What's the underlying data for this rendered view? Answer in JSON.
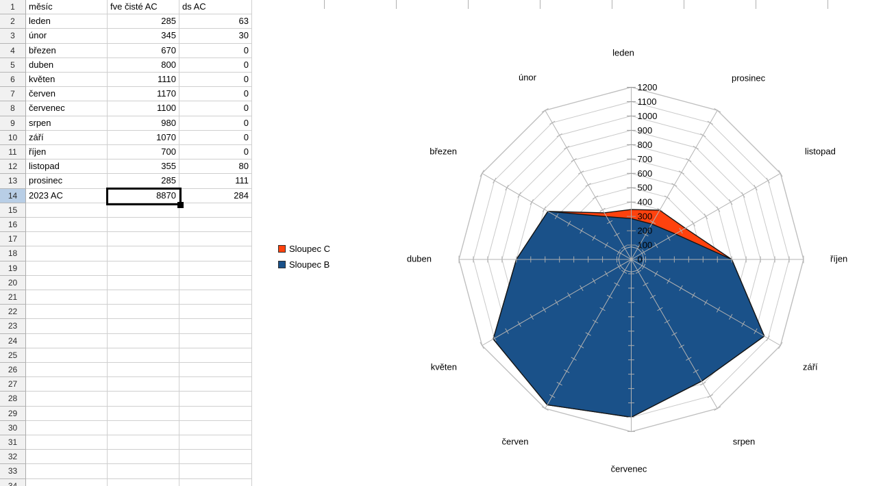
{
  "app": {
    "description_title": "Spreadsheet with stacked radar (net) chart"
  },
  "spreadsheet": {
    "first_row": 1,
    "last_row": 34,
    "header_row": [
      "měsíc",
      "fve čisté AC",
      "ds AC"
    ],
    "rows": [
      {
        "month": "leden",
        "fve": 285,
        "ds": 63
      },
      {
        "month": "únor",
        "fve": 345,
        "ds": 30
      },
      {
        "month": "březen",
        "fve": 670,
        "ds": 0
      },
      {
        "month": "duben",
        "fve": 800,
        "ds": 0
      },
      {
        "month": "květen",
        "fve": 1110,
        "ds": 0
      },
      {
        "month": "červen",
        "fve": 1170,
        "ds": 0
      },
      {
        "month": "červenec",
        "fve": 1100,
        "ds": 0
      },
      {
        "month": "srpen",
        "fve": 980,
        "ds": 0
      },
      {
        "month": "září",
        "fve": 1070,
        "ds": 0
      },
      {
        "month": "říjen",
        "fve": 700,
        "ds": 0
      },
      {
        "month": "listopad",
        "fve": 355,
        "ds": 80
      },
      {
        "month": "prosinec",
        "fve": 285,
        "ds": 111
      }
    ],
    "total_row": {
      "label": "2023 AC",
      "fve": 8870,
      "ds": 284
    },
    "selection": {
      "row": 14,
      "column": "B",
      "value": 8870
    }
  },
  "chart": {
    "legend": {
      "entries": [
        {
          "label": "Sloupec C",
          "swatch_color": "#FF420E"
        },
        {
          "label": "Sloupec B",
          "swatch_color": "#1A5189"
        }
      ]
    }
  },
  "chart_data": {
    "type": "radar",
    "stacked": true,
    "categories": [
      "leden",
      "únor",
      "březen",
      "duben",
      "květen",
      "červen",
      "červenec",
      "srpen",
      "září",
      "říjen",
      "listopad",
      "prosinec"
    ],
    "series": [
      {
        "name": "Sloupec B",
        "color": "#1A5189",
        "values": [
          285,
          345,
          670,
          800,
          1110,
          1170,
          1100,
          980,
          1070,
          700,
          355,
          285
        ]
      },
      {
        "name": "Sloupec C",
        "color": "#FF420E",
        "values": [
          63,
          30,
          0,
          0,
          0,
          0,
          0,
          0,
          0,
          0,
          80,
          111
        ]
      }
    ],
    "axis": {
      "min": 0,
      "max": 1200,
      "step": 100
    },
    "axis_tick_labels": [
      "0",
      "100",
      "200",
      "300",
      "400",
      "500",
      "600",
      "700",
      "800",
      "900",
      "1000",
      "1100",
      "1200"
    ],
    "legend_position": "left",
    "grid": true
  }
}
